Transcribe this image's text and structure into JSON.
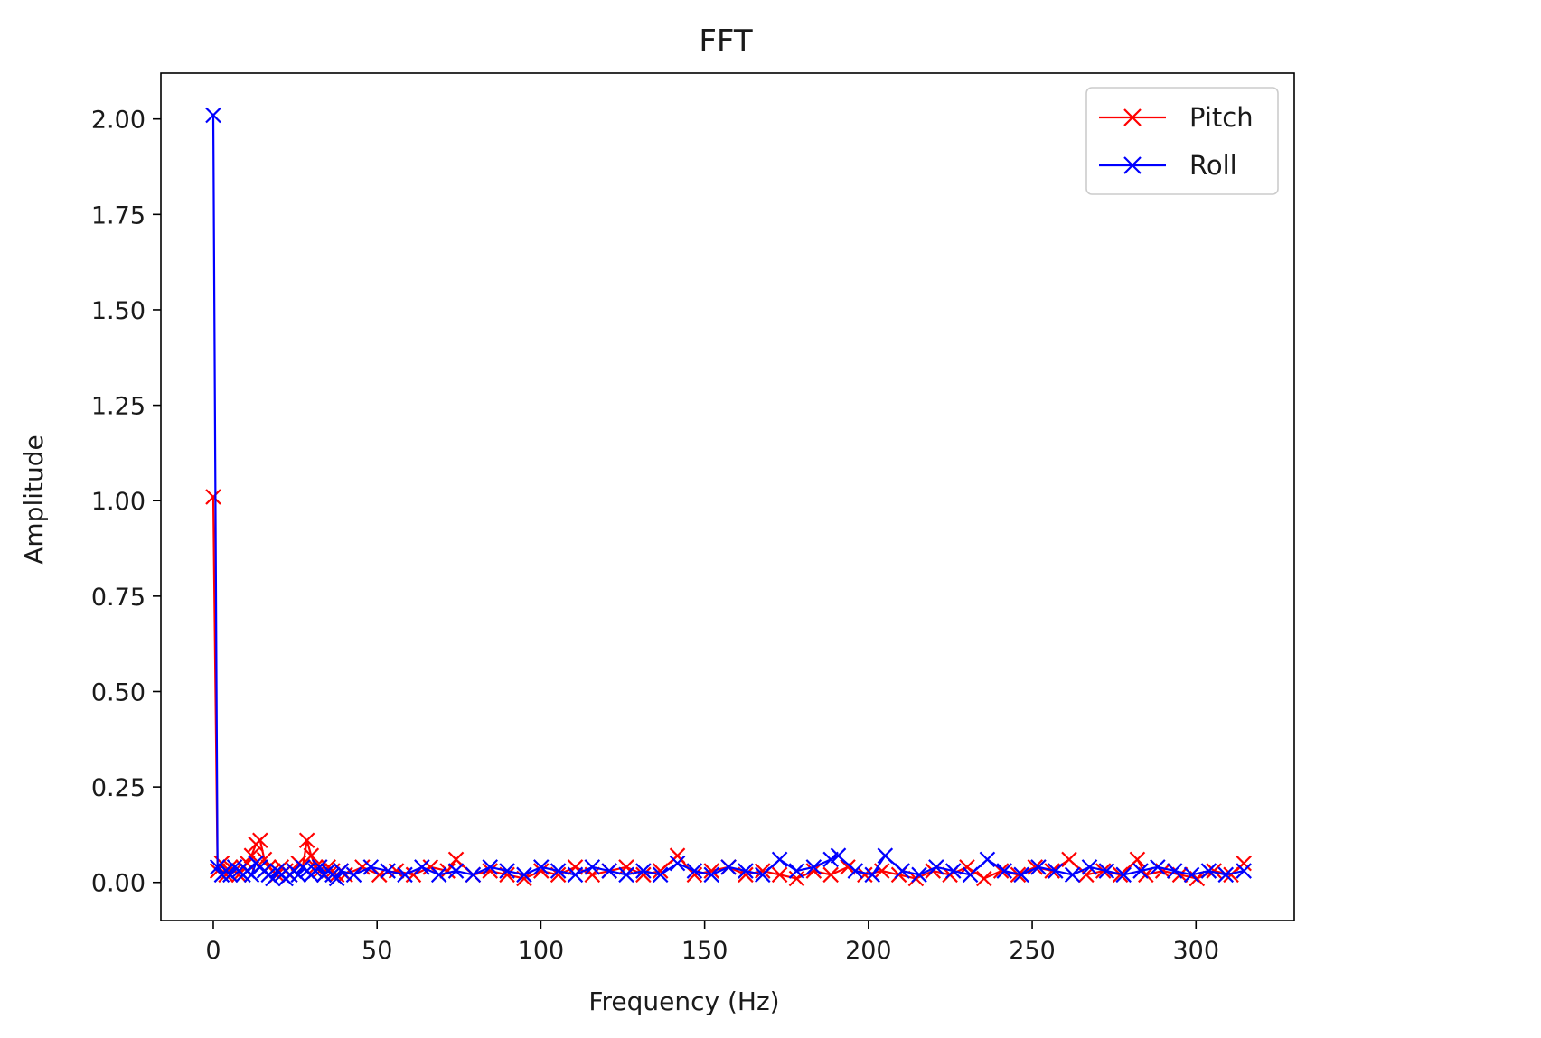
{
  "chart_data": {
    "type": "line",
    "title": "FFT",
    "xlabel": "Frequency (Hz)",
    "ylabel": "Amplitude",
    "xlim": [
      -16,
      330
    ],
    "ylim": [
      -0.1,
      2.12
    ],
    "xticks": [
      0,
      50,
      100,
      150,
      200,
      250,
      300
    ],
    "xtick_labels": [
      "0",
      "50",
      "100",
      "150",
      "200",
      "250",
      "300"
    ],
    "yticks": [
      0.0,
      0.25,
      0.5,
      0.75,
      1.0,
      1.25,
      1.5,
      1.75,
      2.0
    ],
    "ytick_labels": [
      "0.00",
      "0.25",
      "0.50",
      "0.75",
      "1.00",
      "1.25",
      "1.50",
      "1.75",
      "2.00"
    ],
    "grid": false,
    "legend_position": "top-right",
    "marker": "x",
    "series": [
      {
        "name": "Pitch",
        "color": "#ff0000",
        "x": [
          0,
          1.3,
          2.6,
          3.9,
          5.2,
          6.5,
          7.8,
          9.1,
          10.4,
          11.7,
          13.0,
          14.3,
          15.6,
          16.9,
          18.2,
          19.5,
          20.8,
          22.1,
          23.4,
          24.7,
          26.0,
          27.3,
          28.6,
          29.9,
          31.2,
          32.5,
          33.8,
          35.1,
          36.4,
          37.7,
          39.0,
          40.3,
          45.5,
          50.7,
          55.9,
          61.1,
          66.3,
          71.5,
          74.1,
          79.3,
          84.5,
          89.7,
          94.9,
          100.1,
          105.3,
          110.5,
          115.7,
          120.9,
          126.1,
          131.3,
          136.5,
          141.7,
          146.9,
          152.1,
          157.3,
          162.5,
          167.7,
          172.9,
          178.1,
          183.3,
          188.5,
          193.7,
          198.9,
          204.1,
          209.3,
          214.5,
          219.7,
          224.9,
          230.1,
          235.3,
          240.5,
          245.7,
          250.9,
          256.1,
          261.3,
          266.5,
          271.7,
          276.9,
          282.1,
          284.7,
          289.9,
          295.1,
          300.3,
          305.5,
          310.7,
          314.6
        ],
        "y": [
          1.01,
          0.03,
          0.05,
          0.02,
          0.04,
          0.03,
          0.02,
          0.04,
          0.05,
          0.07,
          0.1,
          0.11,
          0.06,
          0.04,
          0.03,
          0.02,
          0.04,
          0.03,
          0.02,
          0.03,
          0.05,
          0.04,
          0.11,
          0.07,
          0.04,
          0.03,
          0.02,
          0.04,
          0.03,
          0.02,
          0.03,
          0.02,
          0.04,
          0.02,
          0.03,
          0.02,
          0.04,
          0.03,
          0.06,
          0.02,
          0.03,
          0.02,
          0.01,
          0.03,
          0.02,
          0.04,
          0.02,
          0.03,
          0.04,
          0.02,
          0.03,
          0.07,
          0.02,
          0.03,
          0.04,
          0.02,
          0.03,
          0.02,
          0.01,
          0.03,
          0.02,
          0.04,
          0.02,
          0.03,
          0.02,
          0.01,
          0.03,
          0.02,
          0.04,
          0.01,
          0.03,
          0.02,
          0.04,
          0.03,
          0.06,
          0.02,
          0.03,
          0.02,
          0.06,
          0.02,
          0.03,
          0.02,
          0.01,
          0.03,
          0.02,
          0.05
        ]
      },
      {
        "name": "Roll",
        "color": "#0000ff",
        "x": [
          0,
          1.3,
          2.6,
          3.9,
          5.2,
          6.5,
          7.8,
          9.1,
          10.4,
          11.7,
          13.0,
          14.3,
          15.6,
          16.9,
          18.2,
          19.5,
          20.8,
          22.1,
          23.4,
          24.7,
          26.0,
          27.3,
          28.6,
          29.9,
          31.2,
          32.5,
          33.8,
          35.1,
          36.4,
          37.7,
          39.0,
          42.9,
          48.1,
          53.3,
          58.5,
          63.7,
          68.9,
          74.1,
          79.3,
          84.5,
          89.7,
          94.9,
          100.1,
          105.3,
          110.5,
          115.7,
          120.9,
          126.1,
          131.3,
          136.5,
          141.7,
          146.9,
          152.1,
          157.3,
          162.5,
          167.7,
          172.9,
          178.1,
          183.3,
          188.5,
          190.8,
          196.0,
          201.2,
          205.1,
          210.3,
          215.5,
          220.7,
          225.9,
          231.1,
          236.3,
          241.5,
          246.7,
          251.9,
          257.1,
          262.3,
          267.5,
          272.7,
          277.9,
          283.1,
          288.3,
          293.5,
          298.7,
          303.9,
          309.1,
          314.6
        ],
        "y": [
          2.01,
          0.04,
          0.02,
          0.03,
          0.02,
          0.04,
          0.03,
          0.02,
          0.03,
          0.02,
          0.05,
          0.04,
          0.03,
          0.02,
          0.01,
          0.03,
          0.02,
          0.01,
          0.02,
          0.03,
          0.02,
          0.04,
          0.03,
          0.02,
          0.03,
          0.04,
          0.02,
          0.03,
          0.02,
          0.01,
          0.03,
          0.02,
          0.04,
          0.03,
          0.02,
          0.04,
          0.02,
          0.03,
          0.02,
          0.04,
          0.03,
          0.02,
          0.04,
          0.03,
          0.02,
          0.04,
          0.03,
          0.02,
          0.03,
          0.02,
          0.05,
          0.03,
          0.02,
          0.04,
          0.03,
          0.02,
          0.06,
          0.03,
          0.04,
          0.06,
          0.07,
          0.03,
          0.02,
          0.07,
          0.03,
          0.02,
          0.04,
          0.03,
          0.02,
          0.06,
          0.03,
          0.02,
          0.04,
          0.03,
          0.02,
          0.04,
          0.03,
          0.02,
          0.03,
          0.04,
          0.03,
          0.02,
          0.03,
          0.02,
          0.03
        ]
      }
    ]
  }
}
